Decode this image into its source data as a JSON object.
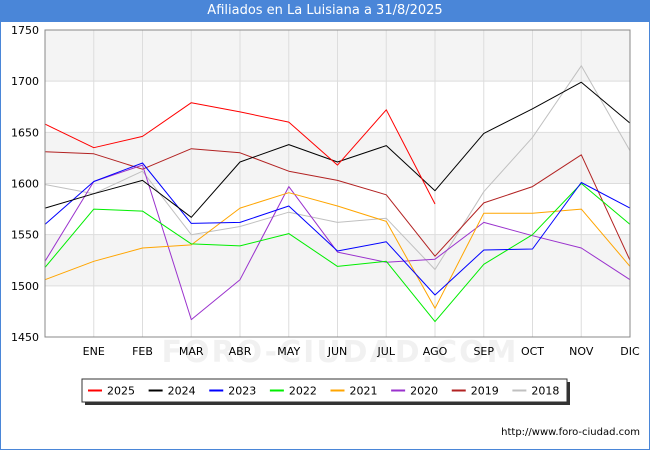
{
  "header": {
    "title": "Afiliados en La Luisiana a 31/8/2025"
  },
  "source": "http://www.foro-ciudad.com",
  "watermark": "FORO-CIUDAD.COM",
  "chart_data": {
    "type": "line",
    "title": "Afiliados en La Luisiana a 31/8/2025",
    "categories": [
      "",
      "ENE",
      "FEB",
      "MAR",
      "ABR",
      "MAY",
      "JUN",
      "JUL",
      "AGO",
      "SEP",
      "OCT",
      "NOV",
      "DIC"
    ],
    "ylim": [
      1450,
      1750
    ],
    "yticks": [
      1450,
      1500,
      1550,
      1600,
      1650,
      1700,
      1750
    ],
    "grid": "horizontal",
    "legend_position": "bottom",
    "series": [
      {
        "name": "2025",
        "color": "#ff0000",
        "values": [
          1658,
          1635,
          1646,
          1679,
          1670,
          1660,
          1618,
          1672,
          1580,
          null,
          null,
          null,
          null
        ]
      },
      {
        "name": "2024",
        "color": "#000000",
        "values": [
          1576,
          1590,
          1603,
          1567,
          1621,
          1638,
          1621,
          1637,
          1593,
          1649,
          1673,
          1699,
          1659
        ]
      },
      {
        "name": "2023",
        "color": "#0000ff",
        "values": [
          1560,
          1602,
          1620,
          1561,
          1562,
          1578,
          1534,
          1543,
          1491,
          1535,
          1536,
          1601,
          1576
        ]
      },
      {
        "name": "2022",
        "color": "#00ee00",
        "values": [
          1518,
          1575,
          1573,
          1541,
          1539,
          1551,
          1519,
          1524,
          1465,
          1521,
          1550,
          1600,
          1560
        ]
      },
      {
        "name": "2021",
        "color": "#ffa500",
        "values": [
          1506,
          1524,
          1537,
          1540,
          1576,
          1591,
          1578,
          1563,
          1478,
          1571,
          1571,
          1575,
          1519
        ]
      },
      {
        "name": "2020",
        "color": "#9a32cd",
        "values": [
          1524,
          1602,
          1618,
          1467,
          1506,
          1597,
          1533,
          1523,
          1526,
          1562,
          1549,
          1537,
          1506
        ]
      },
      {
        "name": "2019",
        "color": "#b22222",
        "values": [
          1631,
          1629,
          1614,
          1634,
          1630,
          1612,
          1603,
          1589,
          1529,
          1581,
          1597,
          1628,
          1525
        ]
      },
      {
        "name": "2018",
        "color": "#c0c0c0",
        "values": [
          1599,
          1590,
          1612,
          1550,
          1558,
          1572,
          1562,
          1566,
          1516,
          1592,
          1645,
          1715,
          1632
        ]
      }
    ]
  }
}
